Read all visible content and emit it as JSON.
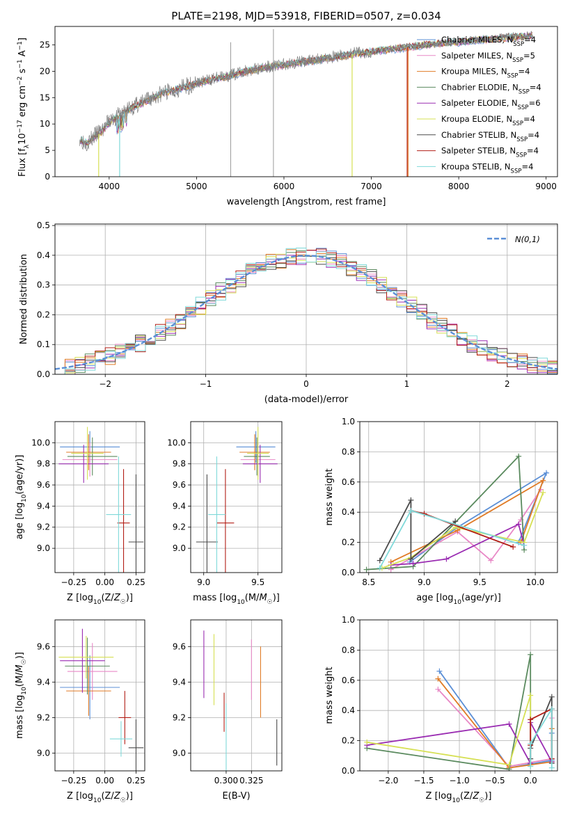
{
  "figure_title": "PLATE=2198, MJD=53918, FIBERID=0507, z=0.034",
  "colors": {
    "Chabrier MILES": "#5b8fd6",
    "Salpeter MILES": "#e888c6",
    "Kroupa MILES": "#e07b26",
    "Chabrier ELODIE": "#5a8a5e",
    "Salpeter ELODIE": "#9a2cb2",
    "Kroupa ELODIE": "#d6e054",
    "Chabrier STELIB": "#4a4a4a",
    "Salpeter STELIB": "#b21e16",
    "Kroupa STELIB": "#7fd9d9"
  },
  "chart_data": [
    {
      "id": "spectrum",
      "type": "line",
      "xlabel": "wavelength [Angstrom, rest frame]",
      "ylabel": "Flux [f_λ 10^-17 erg cm^-2 s^-1 A^-1]",
      "xlim": [
        3380,
        9130
      ],
      "ylim": [
        0,
        28.5
      ],
      "xticks": [
        4000,
        5000,
        6000,
        7000,
        8000,
        9000
      ],
      "yticks": [
        0,
        5,
        10,
        15,
        20,
        25
      ],
      "legend_position": "right",
      "legend": [
        {
          "model": "Chabrier MILES",
          "text": "Chabrier MILES, N",
          "sub": "SSP",
          "tail": "=4"
        },
        {
          "model": "Salpeter MILES",
          "text": "Salpeter MILES, N",
          "sub": "SSP",
          "tail": "=5"
        },
        {
          "model": "Kroupa MILES",
          "text": "Kroupa MILES, N",
          "sub": "SSP",
          "tail": "=4"
        },
        {
          "model": "Chabrier ELODIE",
          "text": "Chabrier ELODIE, N",
          "sub": "SSP",
          "tail": "=4"
        },
        {
          "model": "Salpeter ELODIE",
          "text": "Salpeter ELODIE, N",
          "sub": "SSP",
          "tail": "=6"
        },
        {
          "model": "Kroupa ELODIE",
          "text": "Kroupa ELODIE, N",
          "sub": "SSP",
          "tail": "=4"
        },
        {
          "model": "Chabrier STELIB",
          "text": "Chabrier STELIB, N",
          "sub": "SSP",
          "tail": "=4"
        },
        {
          "model": "Salpeter STELIB",
          "text": "Salpeter STELIB, N",
          "sub": "SSP",
          "tail": "=4"
        },
        {
          "model": "Kroupa STELIB",
          "text": "Kroupa STELIB, N",
          "sub": "SSP",
          "tail": "=4"
        }
      ],
      "data_curve": {
        "name": "data",
        "x": [
          3660,
          3700,
          3750,
          3800,
          3850,
          3900,
          3950,
          4000,
          4050,
          4100,
          4150,
          4200,
          4300,
          4400,
          4500,
          4600,
          4700,
          4800,
          4900,
          5000,
          5100,
          5200,
          5300,
          5400,
          5500,
          5600,
          5700,
          5800,
          5900,
          6000,
          6100,
          6200,
          6300,
          6400,
          6500,
          6600,
          6700,
          6800,
          6900,
          7000,
          7100,
          7200,
          7300,
          7400,
          7500,
          7600,
          7700,
          7800,
          7900,
          8000,
          8100,
          8200,
          8300,
          8400,
          8500,
          8600,
          8700,
          8800,
          8850
        ],
        "y": [
          7.5,
          6.8,
          6.5,
          7.2,
          8.0,
          8.5,
          9.5,
          10.5,
          11.0,
          11.5,
          12.0,
          12.8,
          13.5,
          14.2,
          15.0,
          15.8,
          16.3,
          16.8,
          17.2,
          17.8,
          18.2,
          18.6,
          19.0,
          19.3,
          19.8,
          20.2,
          20.5,
          20.8,
          21.1,
          21.3,
          21.6,
          21.8,
          22.0,
          22.3,
          22.6,
          22.8,
          23.1,
          23.4,
          23.5,
          23.8,
          24.0,
          24.2,
          24.4,
          24.6,
          24.8,
          25.0,
          25.2,
          25.4,
          25.5,
          25.6,
          25.8,
          26.0,
          26.1,
          26.2,
          26.4,
          26.5,
          26.6,
          26.8,
          26.9
        ]
      },
      "model_curve": {
        "name": "models",
        "x": [
          3670,
          3700,
          3750,
          3800,
          3850,
          3900,
          3950,
          4000,
          4050,
          4100,
          4150,
          4200,
          4300,
          4400,
          4500,
          4600,
          4700,
          4800,
          4900,
          5000,
          5100,
          5200,
          5300,
          5400,
          5500,
          5600,
          5700,
          5800,
          5900,
          6000,
          6100,
          6200,
          6300,
          6400,
          6500,
          6600,
          6700,
          6800,
          6900,
          7000,
          7100,
          7200,
          7300,
          7400,
          7500,
          7600,
          7700,
          7800,
          7900,
          8000,
          8100,
          8200,
          8300,
          8400,
          8500,
          8600,
          8700,
          8800,
          8850
        ],
        "y": [
          7.0,
          6.6,
          6.4,
          7.0,
          7.8,
          8.3,
          9.3,
          10.3,
          10.8,
          11.3,
          11.8,
          12.6,
          13.4,
          14.1,
          14.9,
          15.7,
          16.2,
          16.7,
          17.1,
          17.7,
          18.1,
          18.5,
          18.9,
          19.2,
          19.7,
          20.1,
          20.4,
          20.7,
          21.0,
          21.2,
          21.5,
          21.7,
          21.9,
          22.2,
          22.5,
          22.7,
          23.0,
          23.3,
          23.4,
          23.7,
          23.9,
          24.1,
          24.3,
          24.5,
          24.7,
          24.9,
          25.1,
          25.3,
          25.4,
          25.5,
          25.7,
          25.9,
          26.0,
          26.1,
          26.3,
          26.4,
          26.5,
          26.7,
          26.8
        ]
      },
      "model_dropouts": [
        {
          "model": "Kroupa ELODIE",
          "x": 3880
        },
        {
          "model": "Kroupa STELIB",
          "x": 4120
        },
        {
          "model": "Kroupa ELODIE",
          "x": 6780
        },
        {
          "model": "Salpeter STELIB",
          "x": 7410
        },
        {
          "model": "Kroupa MILES",
          "x": 7420
        }
      ],
      "data_spikes": [
        {
          "x": 5390,
          "y": 25.5
        },
        {
          "x": 5880,
          "y": 28.0
        }
      ]
    },
    {
      "id": "residuals",
      "type": "histogram",
      "xlabel": "(data-model)/error",
      "ylabel": "Normed distribution",
      "xlim": [
        -2.5,
        2.5
      ],
      "ylim": [
        0,
        0.505
      ],
      "xticks": [
        -2,
        -1,
        0,
        1,
        2
      ],
      "yticks": [
        0.0,
        0.1,
        0.2,
        0.3,
        0.4,
        0.5
      ],
      "grid": true,
      "legend_position": "top-right",
      "legend_text": "N(0,1)",
      "reference_curve": {
        "name": "normal",
        "mean": 0,
        "sd": 1
      },
      "bin_width": 0.1,
      "bins_start": -2.5
    },
    {
      "id": "age-Z",
      "type": "scatter",
      "xlabel": "Z [log10(Z/Z☉)]",
      "ylabel": "age [log10(age/yr)]",
      "xlim": [
        -0.4,
        0.32
      ],
      "ylim": [
        8.77,
        10.2
      ],
      "xticks": [
        -0.25,
        0.0,
        0.25
      ],
      "yticks": [
        9.0,
        9.2,
        9.4,
        9.6,
        9.8,
        10.0
      ],
      "grid": true,
      "points": [
        {
          "model": "Chabrier MILES",
          "x": -0.12,
          "xerr": 0.24,
          "y": 9.96,
          "yerr": 0.15
        },
        {
          "model": "Salpeter MILES",
          "x": -0.12,
          "xerr": 0.22,
          "y": 9.84,
          "yerr": 0.16
        },
        {
          "model": "Kroupa MILES",
          "x": -0.13,
          "xerr": 0.18,
          "y": 9.91,
          "yerr": 0.17
        },
        {
          "model": "Chabrier ELODIE",
          "x": -0.1,
          "xerr": 0.2,
          "y": 9.87,
          "yerr": 0.18
        },
        {
          "model": "Salpeter ELODIE",
          "x": -0.17,
          "xerr": 0.2,
          "y": 9.8,
          "yerr": 0.18
        },
        {
          "model": "Kroupa ELODIE",
          "x": -0.14,
          "xerr": 0.13,
          "y": 9.9,
          "yerr": 0.25
        },
        {
          "model": "Chabrier STELIB",
          "x": 0.25,
          "xerr": 0.06,
          "y": 9.06,
          "yerr": 0.64
        },
        {
          "model": "Salpeter STELIB",
          "x": 0.15,
          "xerr": 0.05,
          "y": 9.24,
          "yerr": 0.51
        },
        {
          "model": "Kroupa STELIB",
          "x": 0.11,
          "xerr": 0.1,
          "y": 9.32,
          "yerr": 0.55
        }
      ]
    },
    {
      "id": "age-mass",
      "type": "scatter",
      "xlabel": "mass [log10(M/M☉)]",
      "ylabel": "",
      "xlim": [
        8.88,
        9.72
      ],
      "ylim": [
        8.77,
        10.2
      ],
      "xticks": [
        9.0,
        9.5
      ],
      "yticks": [
        9.0,
        9.2,
        9.4,
        9.6,
        9.8,
        10.0
      ],
      "grid": true,
      "points": [
        {
          "model": "Chabrier MILES",
          "x": 9.48,
          "xerr": 0.18,
          "y": 9.96,
          "yerr": 0.15
        },
        {
          "model": "Salpeter MILES",
          "x": 9.5,
          "xerr": 0.16,
          "y": 9.84,
          "yerr": 0.16
        },
        {
          "model": "Kroupa MILES",
          "x": 9.47,
          "xerr": 0.14,
          "y": 9.91,
          "yerr": 0.17
        },
        {
          "model": "Chabrier ELODIE",
          "x": 9.49,
          "xerr": 0.12,
          "y": 9.87,
          "yerr": 0.18
        },
        {
          "model": "Salpeter ELODIE",
          "x": 9.52,
          "xerr": 0.16,
          "y": 9.8,
          "yerr": 0.18
        },
        {
          "model": "Kroupa ELODIE",
          "x": 9.5,
          "xerr": 0.1,
          "y": 9.9,
          "yerr": 0.25
        },
        {
          "model": "Chabrier STELIB",
          "x": 9.03,
          "xerr": 0.1,
          "y": 9.06,
          "yerr": 0.64
        },
        {
          "model": "Salpeter STELIB",
          "x": 9.2,
          "xerr": 0.08,
          "y": 9.24,
          "yerr": 0.51
        },
        {
          "model": "Kroupa STELIB",
          "x": 9.12,
          "xerr": 0.08,
          "y": 9.32,
          "yerr": 0.55
        }
      ]
    },
    {
      "id": "weight-age",
      "type": "line",
      "xlabel": "age [log10(age/yr)]",
      "ylabel": "mass weight",
      "xlim": [
        8.42,
        10.2
      ],
      "ylim": [
        0,
        1.0
      ],
      "xticks": [
        8.5,
        9.0,
        9.5,
        10.0
      ],
      "yticks": [
        0.0,
        0.2,
        0.4,
        0.6,
        0.8,
        1.0
      ],
      "grid": true,
      "series": [
        {
          "model": "Chabrier MILES",
          "x": [
            8.87,
            9.3,
            10.1,
            9.85
          ],
          "y": [
            0.07,
            0.3,
            0.66,
            0.2
          ]
        },
        {
          "model": "Salpeter MILES",
          "x": [
            8.7,
            9.3,
            9.6,
            9.87,
            10.05
          ],
          "y": [
            0.02,
            0.27,
            0.08,
            0.35,
            0.55
          ]
        },
        {
          "model": "Kroupa MILES",
          "x": [
            8.7,
            9.3,
            10.07,
            9.87
          ],
          "y": [
            0.07,
            0.28,
            0.61,
            0.2
          ]
        },
        {
          "model": "Chabrier ELODIE",
          "x": [
            8.48,
            8.9,
            9.85,
            9.9
          ],
          "y": [
            0.02,
            0.04,
            0.77,
            0.15
          ]
        },
        {
          "model": "Salpeter ELODIE",
          "x": [
            8.7,
            8.9,
            9.2,
            9.85,
            9.9
          ],
          "y": [
            0.05,
            0.06,
            0.09,
            0.32,
            0.18
          ]
        },
        {
          "model": "Kroupa ELODIE",
          "x": [
            8.62,
            8.88,
            9.28,
            9.9,
            10.07
          ],
          "y": [
            0.03,
            0.1,
            0.3,
            0.2,
            0.53
          ]
        },
        {
          "model": "Chabrier STELIB",
          "x": [
            8.6,
            8.88,
            8.88,
            9.28
          ],
          "y": [
            0.08,
            0.48,
            0.09,
            0.34
          ]
        },
        {
          "model": "Salpeter STELIB",
          "x": [
            8.88,
            9.0,
            9.8
          ],
          "y": [
            0.41,
            0.39,
            0.17
          ]
        },
        {
          "model": "Kroupa STELIB",
          "x": [
            8.6,
            8.88,
            9.9
          ],
          "y": [
            0.03,
            0.41,
            0.18
          ]
        }
      ]
    },
    {
      "id": "mass-Z",
      "type": "scatter",
      "xlabel": "Z [log10(Z/Z☉)]",
      "ylabel": "mass [log10(M/M☉)]",
      "xlim": [
        -0.4,
        0.32
      ],
      "ylim": [
        8.9,
        9.75
      ],
      "xticks": [
        -0.25,
        0.0,
        0.25
      ],
      "yticks": [
        9.0,
        9.2,
        9.4,
        9.6
      ],
      "grid": true,
      "points": [
        {
          "model": "Chabrier MILES",
          "x": -0.12,
          "xerr": 0.24,
          "y": 9.37,
          "yerr": 0.18
        },
        {
          "model": "Salpeter MILES",
          "x": -0.1,
          "xerr": 0.2,
          "y": 9.46,
          "yerr": 0.16
        },
        {
          "model": "Kroupa MILES",
          "x": -0.13,
          "xerr": 0.18,
          "y": 9.35,
          "yerr": 0.14
        },
        {
          "model": "Chabrier ELODIE",
          "x": -0.14,
          "xerr": 0.18,
          "y": 9.49,
          "yerr": 0.16
        },
        {
          "model": "Salpeter ELODIE",
          "x": -0.18,
          "xerr": 0.18,
          "y": 9.52,
          "yerr": 0.18
        },
        {
          "model": "Kroupa ELODIE",
          "x": -0.15,
          "xerr": 0.22,
          "y": 9.54,
          "yerr": 0.12
        },
        {
          "model": "Chabrier STELIB",
          "x": 0.25,
          "xerr": 0.06,
          "y": 9.03,
          "yerr": 0.16
        },
        {
          "model": "Salpeter STELIB",
          "x": 0.16,
          "xerr": 0.05,
          "y": 9.2,
          "yerr": 0.15
        },
        {
          "model": "Kroupa STELIB",
          "x": 0.13,
          "xerr": 0.09,
          "y": 9.08,
          "yerr": 0.1
        }
      ]
    },
    {
      "id": "mass-EBV",
      "type": "scatter",
      "xlabel": "E(B-V)",
      "ylabel": "",
      "xlim": [
        0.265,
        0.355
      ],
      "ylim": [
        8.9,
        9.75
      ],
      "xticks": [
        0.3,
        0.325
      ],
      "yticks": [
        9.0,
        9.2,
        9.4,
        9.6
      ],
      "grid": true,
      "points": [
        {
          "model": "Salpeter ELODIE",
          "x": 0.278,
          "y": 9.5,
          "yerr": 0.19
        },
        {
          "model": "Kroupa ELODIE",
          "x": 0.288,
          "y": 9.47,
          "yerr": 0.2
        },
        {
          "model": "Salpeter STELIB",
          "x": 0.298,
          "y": 9.23,
          "yerr": 0.11
        },
        {
          "model": "Kroupa STELIB",
          "x": 0.3,
          "y": 9.08,
          "yerr": 0.2
        },
        {
          "model": "Salpeter MILES",
          "x": 0.325,
          "y": 9.47,
          "yerr": 0.17
        },
        {
          "model": "Kroupa MILES",
          "x": 0.334,
          "y": 9.4,
          "yerr": 0.2
        },
        {
          "model": "Chabrier STELIB",
          "x": 0.35,
          "y": 9.06,
          "yerr": 0.13
        }
      ]
    },
    {
      "id": "weight-Z",
      "type": "line",
      "xlabel": "Z [log10(Z/Z☉)]",
      "ylabel": "mass weight",
      "xlim": [
        -2.4,
        0.38
      ],
      "ylim": [
        0,
        1.0
      ],
      "xticks": [
        -2.0,
        -1.5,
        -1.0,
        -0.5,
        0.0
      ],
      "yticks": [
        0.0,
        0.2,
        0.4,
        0.6,
        0.8,
        1.0
      ],
      "grid": true,
      "series": [
        {
          "model": "Chabrier MILES",
          "x": [
            -1.28,
            -0.3,
            0.3,
            0.3
          ],
          "y": [
            0.66,
            0.02,
            0.07,
            0.25
          ]
        },
        {
          "model": "Salpeter MILES",
          "x": [
            -1.3,
            -0.3,
            0.3,
            0.3
          ],
          "y": [
            0.54,
            0.03,
            0.08,
            0.35
          ]
        },
        {
          "model": "Kroupa MILES",
          "x": [
            -1.3,
            -0.3,
            0.3,
            0.3
          ],
          "y": [
            0.61,
            0.02,
            0.06,
            0.28
          ]
        },
        {
          "model": "Chabrier ELODIE",
          "x": [
            -2.3,
            -0.3,
            0.0,
            0.0
          ],
          "y": [
            0.15,
            0.01,
            0.77,
            0.05
          ]
        },
        {
          "model": "Salpeter ELODIE",
          "x": [
            -2.3,
            -0.3,
            0.0,
            0.0,
            0.3
          ],
          "y": [
            0.17,
            0.31,
            0.05,
            0.32,
            0.06
          ]
        },
        {
          "model": "Kroupa ELODIE",
          "x": [
            -2.3,
            -0.3,
            0.0,
            0.0
          ],
          "y": [
            0.19,
            0.04,
            0.5,
            0.03
          ]
        },
        {
          "model": "Chabrier STELIB",
          "x": [
            0.0,
            0.0,
            0.3,
            0.3
          ],
          "y": [
            0.08,
            0.15,
            0.49,
            0.05
          ]
        },
        {
          "model": "Salpeter STELIB",
          "x": [
            0.0,
            0.0,
            0.3,
            0.3
          ],
          "y": [
            0.17,
            0.34,
            0.41,
            0.08
          ]
        },
        {
          "model": "Kroupa STELIB",
          "x": [
            0.0,
            0.0,
            0.3,
            0.3
          ],
          "y": [
            0.03,
            0.18,
            0.41,
            0.02
          ]
        }
      ]
    }
  ]
}
